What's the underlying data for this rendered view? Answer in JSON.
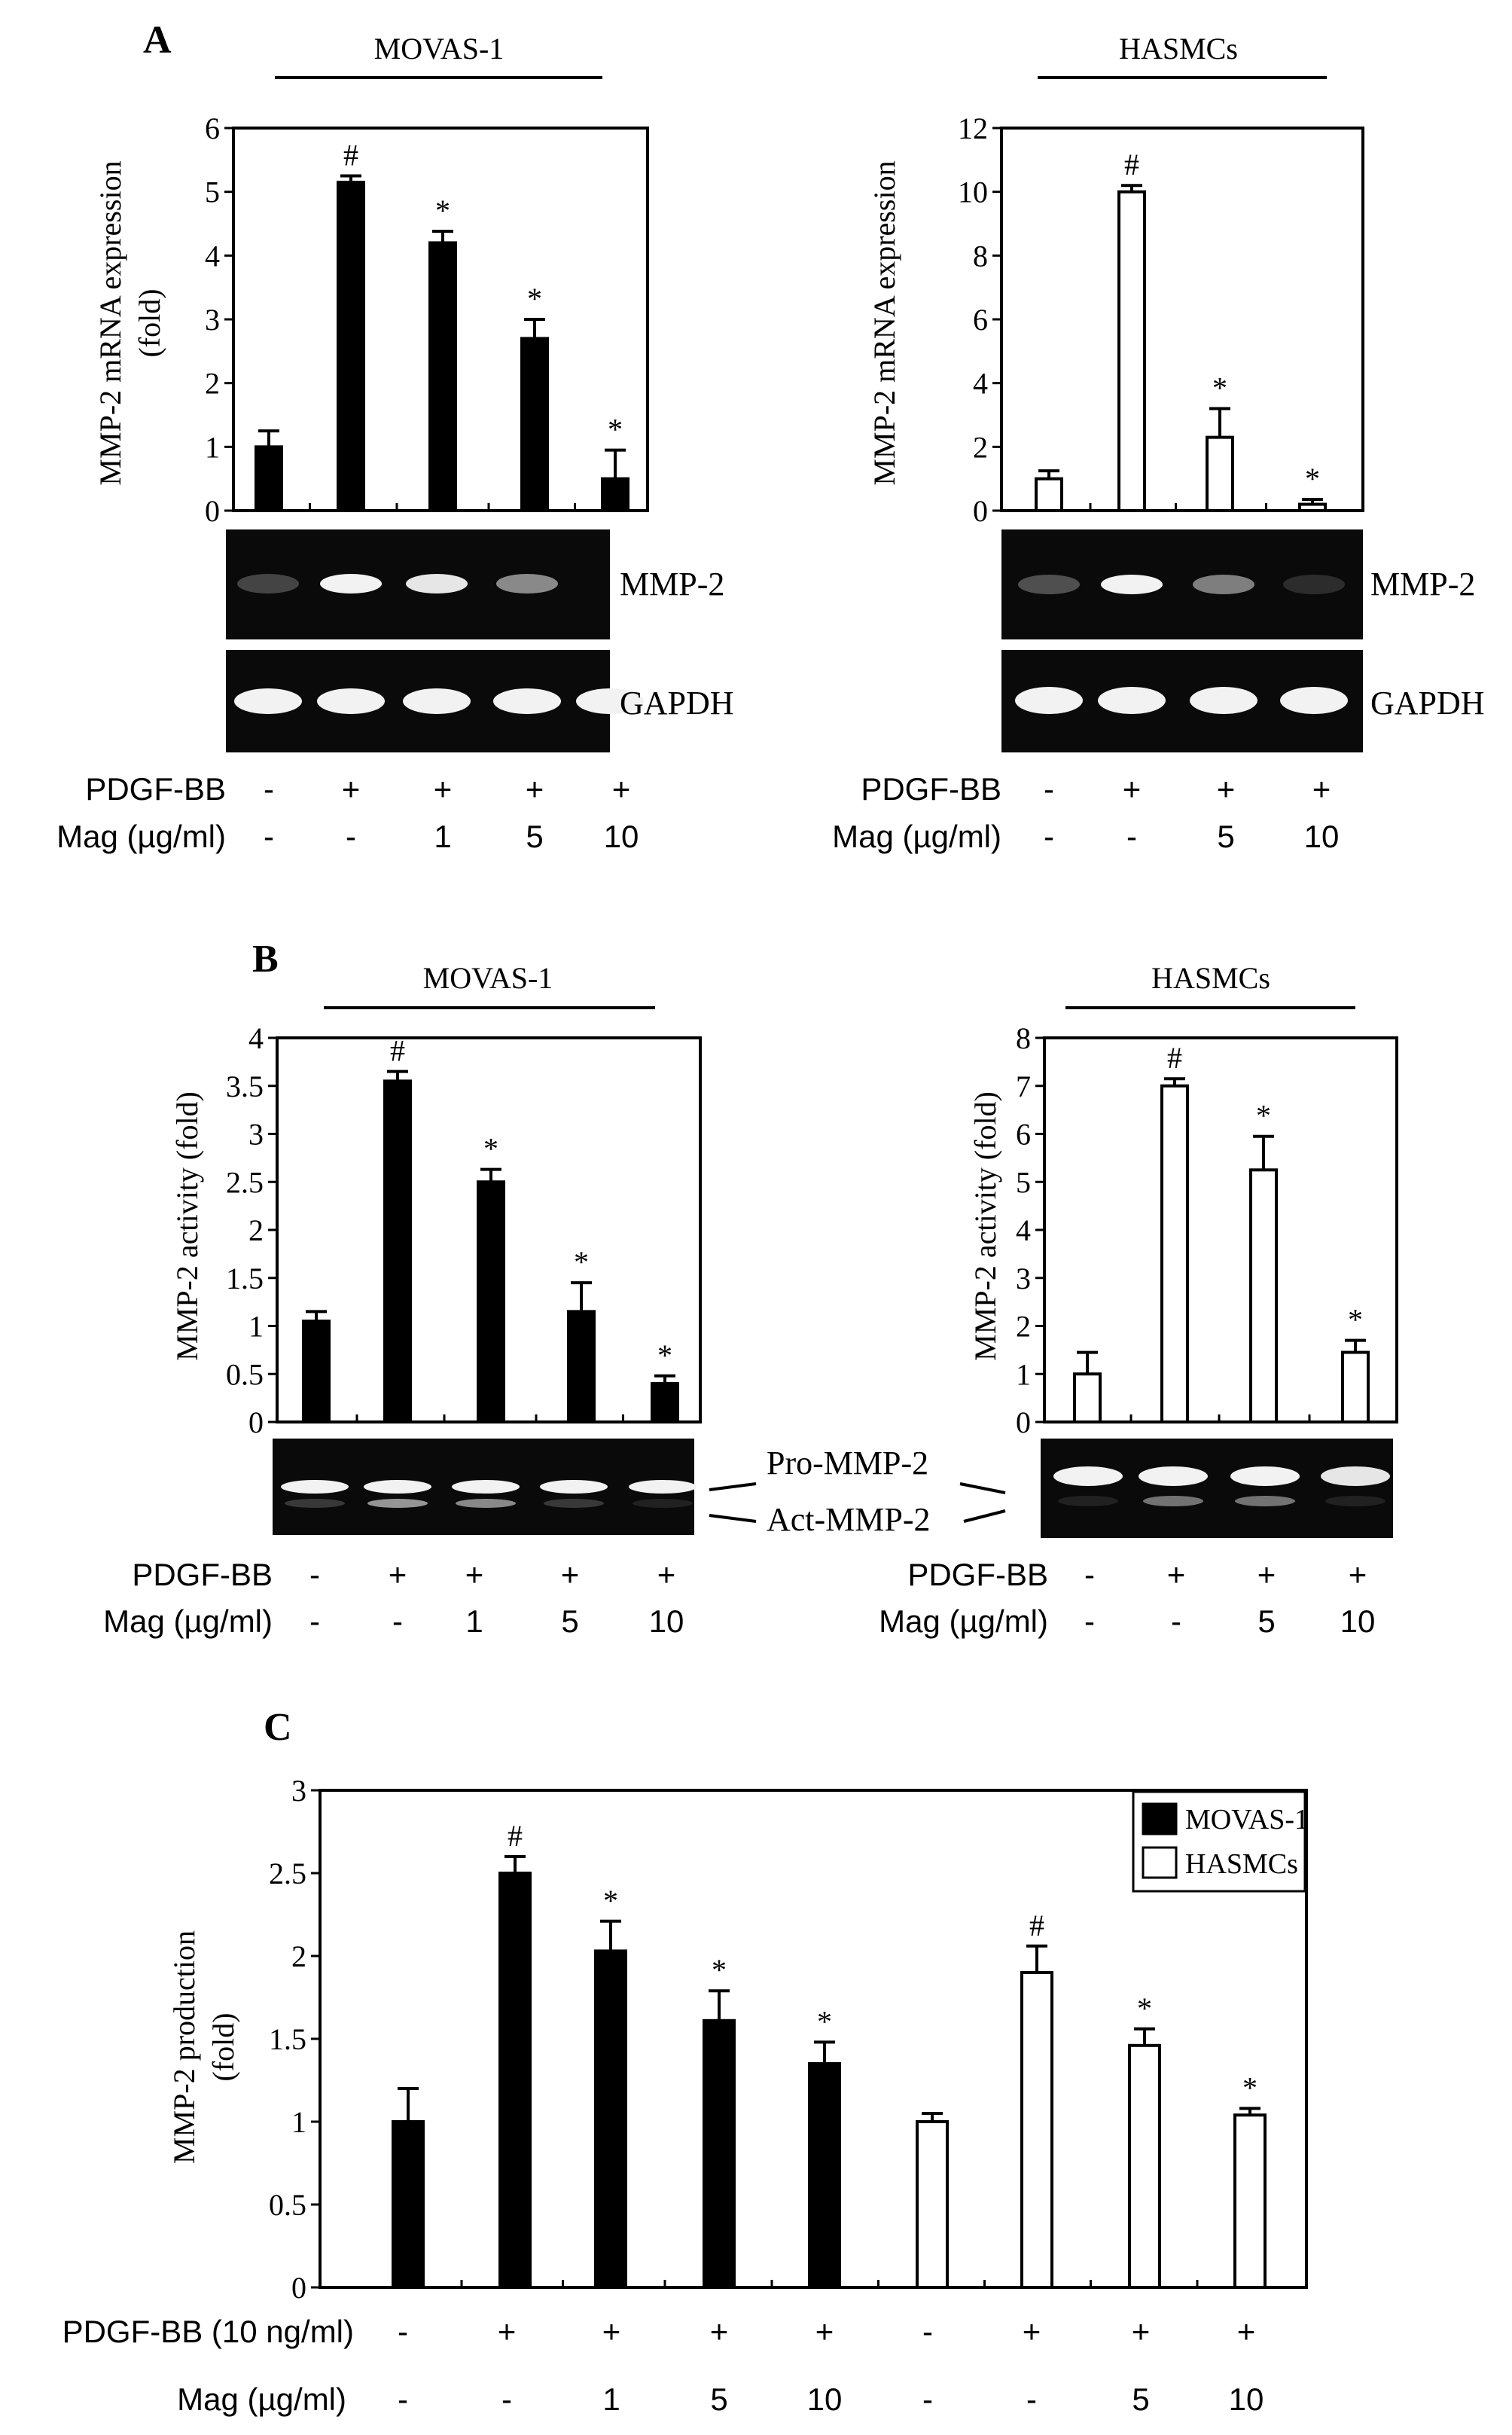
{
  "panels": {
    "A": {
      "letter": "A",
      "left": {
        "group_label": "MOVAS-1",
        "ylabel_line1": "MMP-2 mRNA expression",
        "ylabel_line2": "(fold)",
        "gel_labels": [
          "MMP-2",
          "GAPDH"
        ],
        "pdgf_label": "PDGF-BB",
        "mag_label": "Mag (µg/ml)",
        "pdgf_values": [
          "-",
          "+",
          "+",
          "+",
          "+"
        ],
        "mag_values": [
          "-",
          "-",
          "1",
          "5",
          "10"
        ]
      },
      "right": {
        "group_label": "HASMCs",
        "ylabel_line1": "MMP-2 mRNA expression",
        "ylabel_line2": "",
        "gel_labels": [
          "MMP-2",
          "GAPDH"
        ],
        "pdgf_label": "PDGF-BB",
        "mag_label": "Mag (µg/ml)",
        "pdgf_values": [
          "-",
          "+",
          "+",
          "+"
        ],
        "mag_values": [
          "-",
          "-",
          "5",
          "10"
        ]
      }
    },
    "B": {
      "letter": "B",
      "left": {
        "group_label": "MOVAS-1",
        "ylabel_line1": "MMP-2 activity  (fold)",
        "pdgf_label": "PDGF-BB",
        "mag_label": "Mag (µg/ml)",
        "pdgf_values": [
          "-",
          "+",
          "+",
          "+",
          "+"
        ],
        "mag_values": [
          "-",
          "-",
          "1",
          "5",
          "10"
        ]
      },
      "right": {
        "group_label": "HASMCs",
        "ylabel_line1": "MMP-2 activity  (fold)",
        "pdgf_label": "PDGF-BB",
        "mag_label": "Mag (µg/ml)",
        "pdgf_values": [
          "-",
          "+",
          "+",
          "+"
        ],
        "mag_values": [
          "-",
          "-",
          "5",
          "10"
        ]
      },
      "gel_labels": [
        "Pro-MMP-2",
        "Act-MMP-2"
      ]
    },
    "C": {
      "letter": "C",
      "ylabel_line1": "MMP-2 production",
      "ylabel_line2": "(fold)",
      "pdgf_label": "PDGF-BB (10 ng/ml)",
      "mag_label": "Mag (µg/ml)",
      "pdgf_values": [
        "-",
        "+",
        "+",
        "+",
        "+",
        "-",
        "+",
        "+",
        "+"
      ],
      "mag_values": [
        "-",
        "-",
        "1",
        "5",
        "10",
        "-",
        "-",
        "5",
        "10"
      ]
    }
  },
  "colors": {
    "filled": "#000000",
    "open": "#ffffff",
    "gel_bg": "#0a0a0a",
    "band": "#f2f2f2"
  },
  "chart_data": [
    {
      "id": "A-left",
      "type": "bar",
      "ylim": [
        0,
        6
      ],
      "yticks": [
        0,
        1,
        2,
        3,
        4,
        5,
        6
      ],
      "series": [
        {
          "name": "MOVAS-1",
          "fill": "filled",
          "values": [
            1.0,
            5.15,
            4.2,
            2.7,
            0.5
          ],
          "errors": [
            0.25,
            0.1,
            0.18,
            0.3,
            0.45
          ],
          "marks": [
            "",
            "#",
            "*",
            "*",
            "*"
          ]
        }
      ]
    },
    {
      "id": "A-right",
      "type": "bar",
      "ylim": [
        0,
        12
      ],
      "yticks": [
        0,
        2,
        4,
        6,
        8,
        10,
        12
      ],
      "series": [
        {
          "name": "HASMCs",
          "fill": "open",
          "values": [
            1.0,
            10.0,
            2.3,
            0.2
          ],
          "errors": [
            0.25,
            0.2,
            0.9,
            0.15
          ],
          "marks": [
            "",
            "#",
            "*",
            "*"
          ]
        }
      ]
    },
    {
      "id": "B-left",
      "type": "bar",
      "ylim": [
        0,
        4
      ],
      "yticks": [
        0,
        0.5,
        1,
        1.5,
        2,
        2.5,
        3,
        3.5,
        4
      ],
      "series": [
        {
          "name": "MOVAS-1",
          "fill": "filled",
          "values": [
            1.05,
            3.55,
            2.5,
            1.15,
            0.4
          ],
          "errors": [
            0.1,
            0.1,
            0.13,
            0.3,
            0.08
          ],
          "marks": [
            "",
            "#",
            "*",
            "*",
            "*"
          ]
        }
      ]
    },
    {
      "id": "B-right",
      "type": "bar",
      "ylim": [
        0,
        8
      ],
      "yticks": [
        0,
        1,
        2,
        3,
        4,
        5,
        6,
        7,
        8
      ],
      "series": [
        {
          "name": "HASMCs",
          "fill": "open",
          "values": [
            1.0,
            7.0,
            5.25,
            1.45
          ],
          "errors": [
            0.45,
            0.15,
            0.7,
            0.25
          ],
          "marks": [
            "",
            "#",
            "*",
            "*"
          ]
        }
      ]
    },
    {
      "id": "C",
      "type": "bar",
      "ylim": [
        0,
        3
      ],
      "yticks": [
        0,
        0.5,
        1,
        1.5,
        2,
        2.5,
        3
      ],
      "legend": "top-right",
      "series": [
        {
          "name": "MOVAS-1",
          "fill": "filled",
          "values": [
            1.0,
            2.5,
            2.03,
            1.61,
            1.35
          ],
          "errors": [
            0.2,
            0.1,
            0.18,
            0.18,
            0.13
          ],
          "marks": [
            "",
            "#",
            "*",
            "*",
            "*"
          ]
        },
        {
          "name": "HASMCs",
          "fill": "open",
          "values": [
            1.0,
            1.9,
            1.46,
            1.04
          ],
          "errors": [
            0.05,
            0.16,
            0.1,
            0.04
          ],
          "marks": [
            "",
            "#",
            "*",
            "*"
          ]
        }
      ]
    }
  ]
}
